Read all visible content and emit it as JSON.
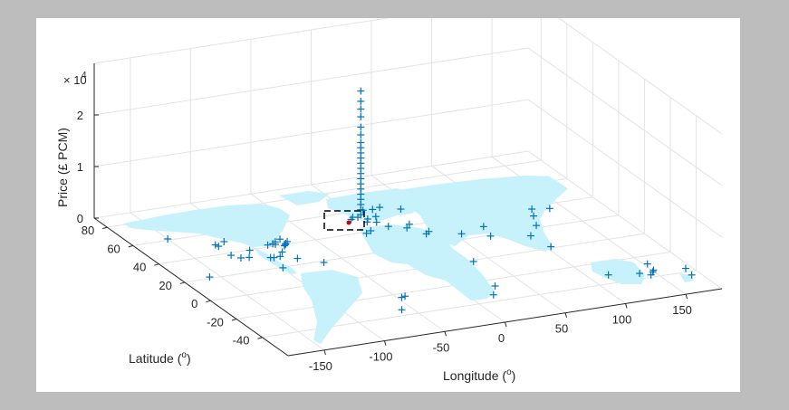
{
  "chart_data": {
    "type": "scatter",
    "projection": "3d",
    "xlabel_text": "Longitude (",
    "ylabel_text": "Latitude (",
    "deg_symbol": "o",
    "close_paren": ")",
    "zlabel": "Price (£ PCM)",
    "z_multiplier_prefix": "× 10",
    "z_multiplier_exp": "4",
    "xlim": [
      -180,
      180
    ],
    "ylim": [
      -60,
      90
    ],
    "zlim": [
      0,
      30000
    ],
    "x_ticks": [
      -150,
      -100,
      -50,
      0,
      50,
      100,
      150
    ],
    "y_ticks": [
      -40,
      -20,
      0,
      20,
      40,
      60,
      80
    ],
    "z_ticks": [
      0,
      1,
      2
    ],
    "grid": true,
    "background_map": "world landmass",
    "colors": {
      "marker": "#0072bd",
      "landmass": "#c7f1fb",
      "highlight": "#cc0000",
      "grid": "#e3e3e3",
      "axis": "#262626"
    },
    "series": [
      {
        "marker": "+",
        "points": [
          [
            -0.1,
            51.5,
            25000
          ],
          [
            -0.1,
            51.5,
            23000
          ],
          [
            -0.1,
            51.5,
            21500
          ],
          [
            -0.1,
            51.5,
            20000
          ],
          [
            -0.1,
            51.5,
            18000
          ],
          [
            -0.1,
            51.5,
            16500
          ],
          [
            -0.1,
            51.5,
            15000
          ],
          [
            -0.1,
            51.5,
            14000
          ],
          [
            -0.1,
            51.5,
            13000
          ],
          [
            -0.1,
            51.5,
            12000
          ],
          [
            -0.1,
            51.5,
            11000
          ],
          [
            -0.1,
            51.5,
            10000
          ],
          [
            -0.1,
            51.5,
            9000
          ],
          [
            -0.1,
            51.5,
            8000
          ],
          [
            -0.1,
            51.5,
            7000
          ],
          [
            -0.1,
            51.5,
            6000
          ],
          [
            -0.1,
            51.5,
            5000
          ],
          [
            -0.1,
            51.5,
            4000
          ],
          [
            -0.1,
            51.5,
            3000
          ],
          [
            -0.1,
            51.5,
            2000
          ],
          [
            -0.1,
            51.5,
            1000
          ],
          [
            -2.0,
            52.0,
            500
          ],
          [
            2.3,
            48.8,
            0
          ],
          [
            -3.0,
            55.0,
            0
          ],
          [
            4.0,
            50.0,
            300
          ],
          [
            -6.2,
            53.3,
            0
          ],
          [
            8.5,
            47.3,
            0
          ],
          [
            12.5,
            41.9,
            0
          ],
          [
            -3.7,
            40.4,
            0
          ],
          [
            -9.1,
            38.7,
            0
          ],
          [
            13.4,
            52.5,
            0
          ],
          [
            18.0,
            59.3,
            0
          ],
          [
            10.7,
            59.9,
            0
          ],
          [
            24.9,
            60.2,
            0
          ],
          [
            37.6,
            55.7,
            0
          ],
          [
            28.9,
            41.0,
            0
          ],
          [
            23.7,
            38.0,
            0
          ],
          [
            31.2,
            30.0,
            0
          ],
          [
            35.2,
            31.8,
            0
          ],
          [
            55.3,
            25.2,
            0
          ],
          [
            -74.0,
            40.7,
            0
          ],
          [
            -73.9,
            40.8,
            0
          ],
          [
            -71.0,
            42.3,
            0
          ],
          [
            -77.0,
            38.9,
            0
          ],
          [
            -75.1,
            39.9,
            0
          ],
          [
            -79.4,
            43.7,
            0
          ],
          [
            -87.6,
            41.9,
            0
          ],
          [
            -80.2,
            25.8,
            0
          ],
          [
            -84.4,
            33.7,
            0
          ],
          [
            -95.4,
            29.8,
            0
          ],
          [
            -97.7,
            30.3,
            0
          ],
          [
            -104.9,
            39.7,
            0
          ],
          [
            -112.1,
            33.4,
            0
          ],
          [
            -118.2,
            34.1,
            0
          ],
          [
            -122.4,
            37.8,
            0
          ],
          [
            -122.3,
            47.6,
            0
          ],
          [
            -123.1,
            49.3,
            0
          ],
          [
            -114.1,
            51.0,
            0
          ],
          [
            -90.1,
            30.0,
            0
          ],
          [
            -81.7,
            41.5,
            0
          ],
          [
            -83.0,
            42.3,
            0
          ],
          [
            -73.6,
            45.5,
            0
          ],
          [
            -66.1,
            18.5,
            0
          ],
          [
            -99.1,
            19.4,
            0
          ],
          [
            -149.9,
            61.2,
            0
          ],
          [
            -157.9,
            21.3,
            0
          ],
          [
            -43.2,
            -22.9,
            0
          ],
          [
            -46.6,
            -23.5,
            0
          ],
          [
            -58.4,
            -34.6,
            0
          ],
          [
            18.4,
            -33.9,
            0
          ],
          [
            28.0,
            -26.2,
            0
          ],
          [
            36.8,
            -1.3,
            0
          ],
          [
            72.9,
            19.1,
            0
          ],
          [
            77.2,
            28.6,
            0
          ],
          [
            103.8,
            1.3,
            0
          ],
          [
            114.2,
            22.3,
            0
          ],
          [
            121.5,
            31.2,
            0
          ],
          [
            139.7,
            35.7,
            0
          ],
          [
            126.9,
            37.6,
            0
          ],
          [
            100.5,
            13.8,
            0
          ],
          [
            151.2,
            -33.9,
            0
          ],
          [
            144.9,
            -37.8,
            0
          ],
          [
            153.0,
            -27.5,
            0
          ],
          [
            115.9,
            -31.9,
            0
          ],
          [
            138.6,
            -34.9,
            0
          ],
          [
            174.8,
            -36.8,
            0
          ],
          [
            172.6,
            -43.5,
            0
          ],
          [
            149.1,
            -35.3,
            0
          ]
        ]
      }
    ]
  }
}
